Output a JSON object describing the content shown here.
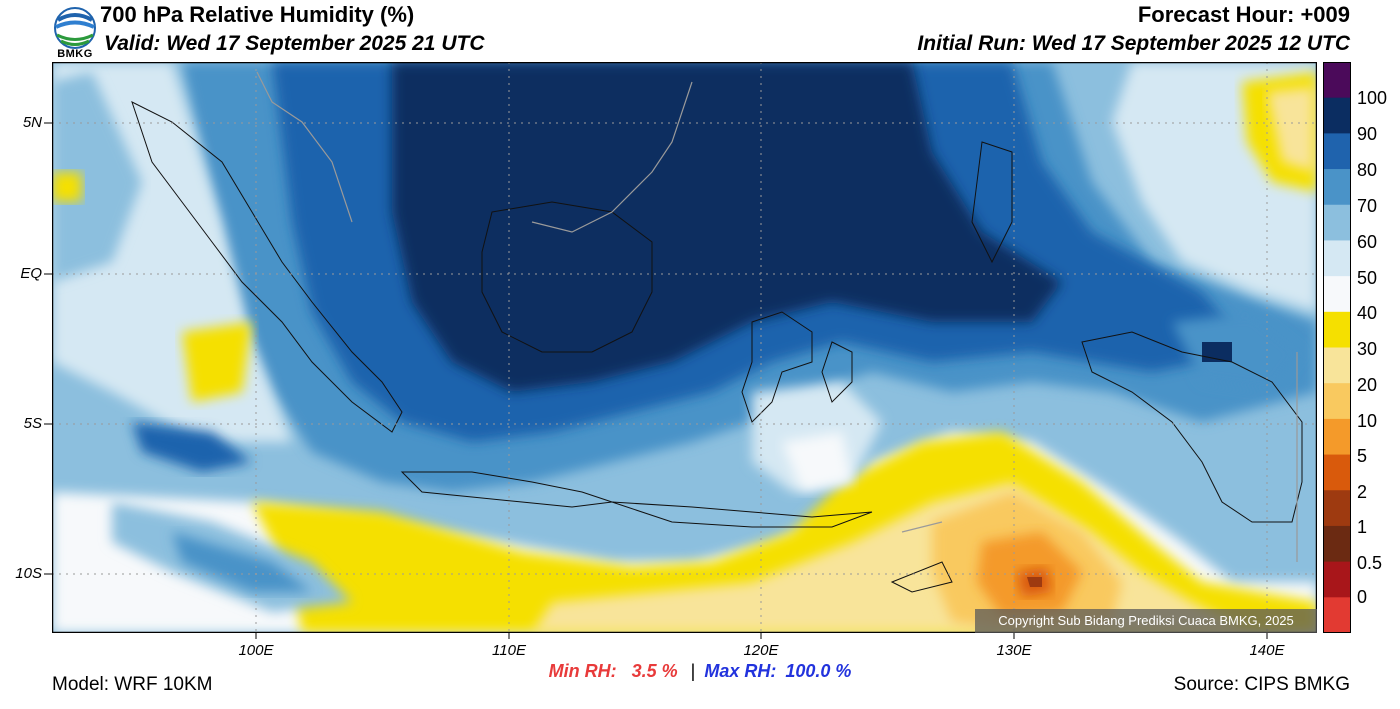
{
  "header": {
    "title": "700 hPa Relative Humidity (%)",
    "valid": "Valid: Wed 17 September 2025 21 UTC",
    "forecast_hour": "Forecast Hour: +009",
    "initial_run": "Initial Run: Wed 17 September 2025 12 UTC"
  },
  "logo": {
    "text": "BMKG",
    "icon": "bmkg-logo-icon"
  },
  "axes": {
    "latitudes": [
      "5N",
      "EQ",
      "5S",
      "10S"
    ],
    "longitudes": [
      "100E",
      "110E",
      "120E",
      "130E",
      "140E"
    ]
  },
  "colorbar": {
    "labels": [
      "100",
      "90",
      "80",
      "70",
      "60",
      "50",
      "40",
      "30",
      "20",
      "10",
      "5",
      "2",
      "1",
      "0.5",
      "0"
    ],
    "colors": [
      "#4b0a5a",
      "#0b2d61",
      "#1f63ad",
      "#4a93c8",
      "#8cbfde",
      "#d5e8f3",
      "#f7f9fb",
      "#f5e000",
      "#f8e49a",
      "#f9c95f",
      "#f49a2a",
      "#d95a0c",
      "#9e3a10",
      "#6b2a12",
      "#a8161a",
      "#e23a32"
    ]
  },
  "stats": {
    "min_label": "Min RH:",
    "min_value": "3.5 %",
    "separator": "|",
    "max_label": "Max RH:",
    "max_value": "100.0 %"
  },
  "footer": {
    "model": "Model: WRF 10KM",
    "source": "Source: CIPS BMKG",
    "copyright": "Copyright Sub Bidang Prediksi Cuaca BMKG, 2025"
  }
}
